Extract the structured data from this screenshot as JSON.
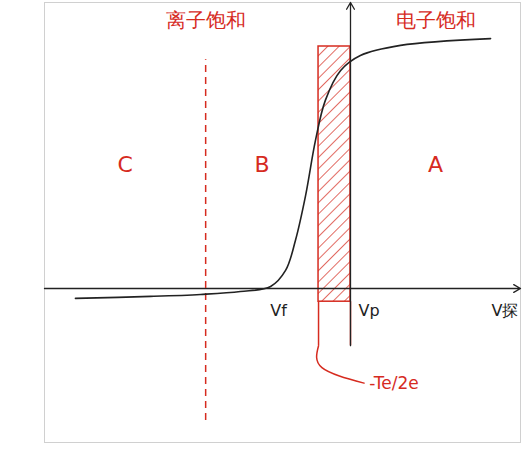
{
  "chart_data": {
    "type": "line",
    "x": [
      -8.09,
      -5.88,
      -4.41,
      -3.24,
      -2.35,
      -1.91,
      -1.62,
      -1.32,
      -1.03,
      -0.74,
      -0.29,
      0.29,
      1.47,
      4.12
    ],
    "values": [
      -0.45,
      -0.36,
      -0.27,
      -0.14,
      0.09,
      0.82,
      2.18,
      4.23,
      6.73,
      8.55,
      9.91,
      10.59,
      11.05,
      11.36
    ],
    "color": "#222222",
    "xlim": [
      -9,
      5
    ],
    "ylim": [
      -7,
      13
    ],
    "xticks": [
      0
    ],
    "yticks": [
      0
    ],
    "tick_labels": false,
    "x_label": "V探",
    "regions": [
      {
        "label": "C",
        "from": -9,
        "to": -4.26,
        "color": "#d62b1f"
      },
      {
        "label": "B",
        "from": -4.26,
        "to": -0.94,
        "color": "#d62b1f"
      },
      {
        "label": "A",
        "from": 0,
        "to": 5,
        "color": "#d62b1f"
      }
    ],
    "ion_saturation": {
      "label": "离子饱和",
      "x": -4.26,
      "color": "#d62b1f",
      "line_style": "dashed"
    },
    "electron_saturation": {
      "label": "电子饱和",
      "color": "#d62b1f"
    },
    "floating_potential": {
      "label": "Vf",
      "x": -2.29
    },
    "plasma_potential": {
      "label": "Vp",
      "x": 0
    },
    "transition_band": {
      "label": "-Te/2e",
      "from": -0.94,
      "to": 0,
      "color": "#d62b1f"
    }
  }
}
